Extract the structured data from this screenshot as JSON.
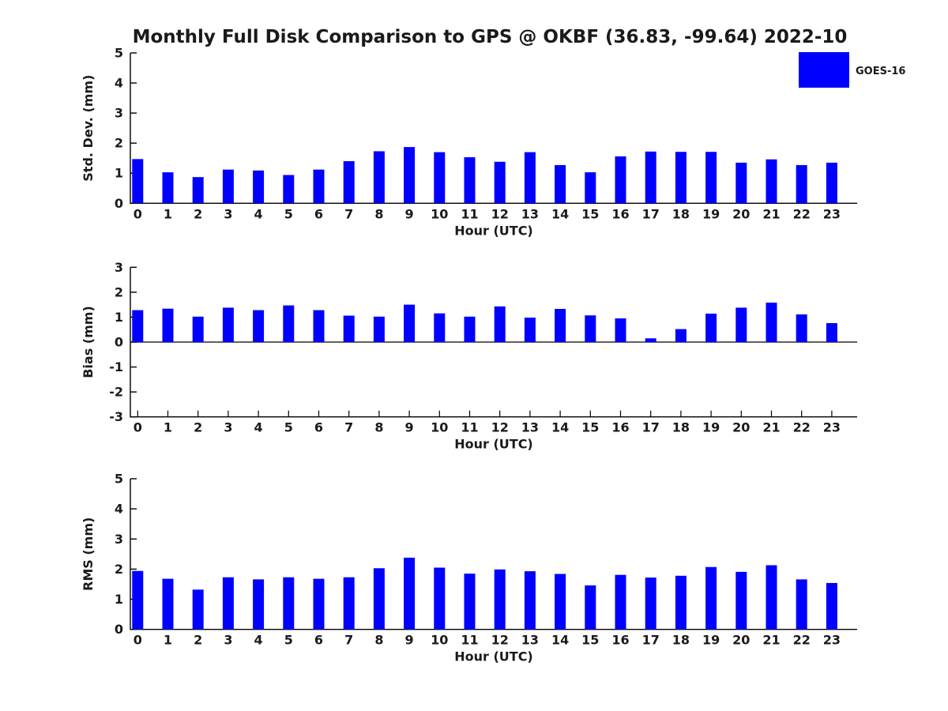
{
  "title": "Monthly Full Disk Comparison to GPS @ OKBF (36.83, -99.64) 2022-10",
  "legend": {
    "label": "GOES-16",
    "color": "#0000FF",
    "position": "top-right-of-first-subplot"
  },
  "chart_data": [
    {
      "type": "bar",
      "title": "",
      "series_name": "GOES-16",
      "categories": [
        "0",
        "1",
        "2",
        "3",
        "4",
        "5",
        "6",
        "7",
        "8",
        "9",
        "10",
        "11",
        "12",
        "13",
        "14",
        "15",
        "16",
        "17",
        "18",
        "19",
        "20",
        "21",
        "22",
        "23"
      ],
      "values": [
        1.47,
        1.03,
        0.87,
        1.12,
        1.09,
        0.94,
        1.12,
        1.4,
        1.73,
        1.87,
        1.7,
        1.53,
        1.38,
        1.7,
        1.27,
        1.03,
        1.56,
        1.72,
        1.71,
        1.71,
        1.35,
        1.46,
        1.27,
        1.35
      ],
      "xlabel": "Hour (UTC)",
      "ylabel": "Std. Dev. (mm)",
      "ylim": [
        0,
        5
      ],
      "yticks": [
        0,
        1,
        2,
        3,
        4,
        5
      ],
      "grid": false,
      "zero_line": false,
      "x_axis_ticks": false,
      "legend_position": "upper right"
    },
    {
      "type": "bar",
      "title": "",
      "series_name": "GOES-16",
      "categories": [
        "0",
        "1",
        "2",
        "3",
        "4",
        "5",
        "6",
        "7",
        "8",
        "9",
        "10",
        "11",
        "12",
        "13",
        "14",
        "15",
        "16",
        "17",
        "18",
        "19",
        "20",
        "21",
        "22",
        "23"
      ],
      "values": [
        1.28,
        1.34,
        1.02,
        1.38,
        1.28,
        1.47,
        1.28,
        1.06,
        1.02,
        1.5,
        1.15,
        1.02,
        1.43,
        0.98,
        1.33,
        1.07,
        0.95,
        0.15,
        0.52,
        1.14,
        1.38,
        1.58,
        1.11,
        0.76
      ],
      "xlabel": "Hour (UTC)",
      "ylabel": "Bias (mm)",
      "ylim": [
        -3,
        3
      ],
      "yticks": [
        -3,
        -2,
        -1,
        0,
        1,
        2,
        3
      ],
      "grid": false,
      "zero_line": true,
      "x_axis_ticks": true,
      "legend_position": "none"
    },
    {
      "type": "bar",
      "title": "",
      "series_name": "GOES-16",
      "categories": [
        "0",
        "1",
        "2",
        "3",
        "4",
        "5",
        "6",
        "7",
        "8",
        "9",
        "10",
        "11",
        "12",
        "13",
        "14",
        "15",
        "16",
        "17",
        "18",
        "19",
        "20",
        "21",
        "22",
        "23"
      ],
      "values": [
        1.94,
        1.68,
        1.32,
        1.73,
        1.66,
        1.73,
        1.68,
        1.73,
        2.03,
        2.38,
        2.05,
        1.85,
        1.99,
        1.93,
        1.84,
        1.46,
        1.81,
        1.72,
        1.78,
        2.07,
        1.91,
        2.13,
        1.66,
        1.54
      ],
      "xlabel": "Hour (UTC)",
      "ylabel": "RMS (mm)",
      "ylim": [
        0,
        5
      ],
      "yticks": [
        0,
        1,
        2,
        3,
        4,
        5
      ],
      "grid": false,
      "zero_line": false,
      "x_axis_ticks": false,
      "legend_position": "none"
    }
  ]
}
